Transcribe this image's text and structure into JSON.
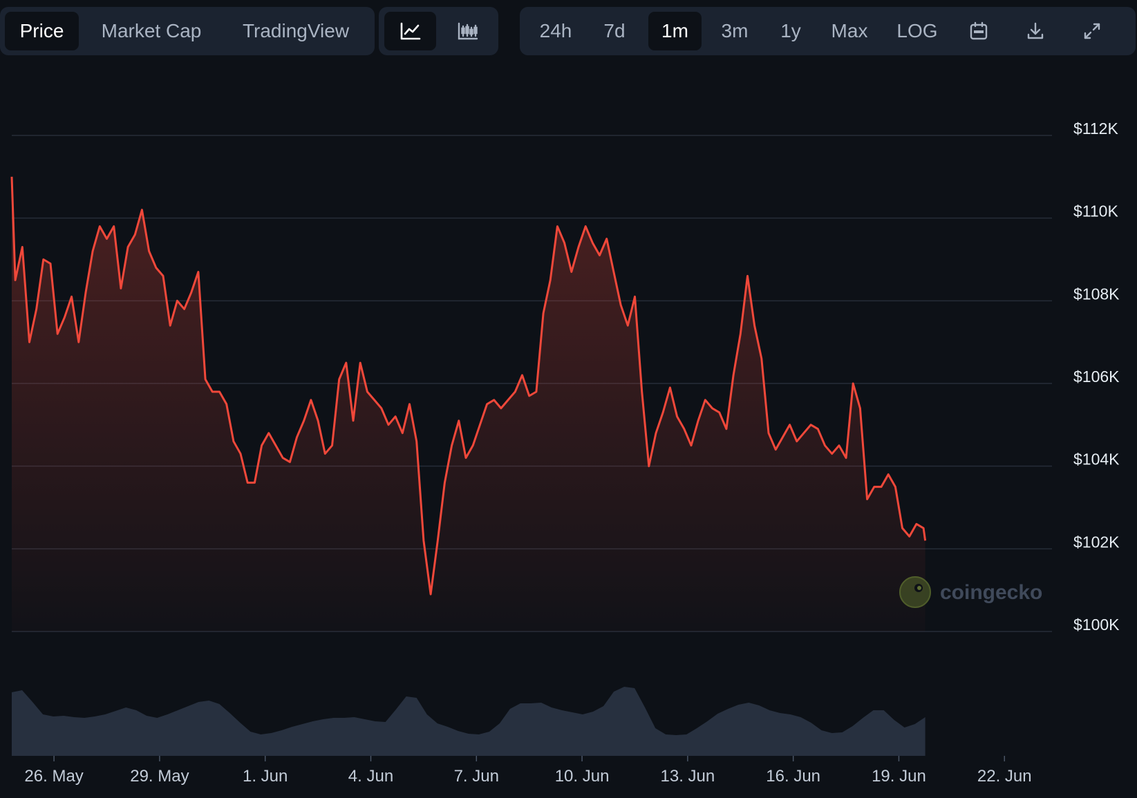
{
  "toolbar": {
    "view_tabs": [
      {
        "label": "Price",
        "active": true
      },
      {
        "label": "Market Cap",
        "active": false
      },
      {
        "label": "TradingView",
        "active": false
      }
    ],
    "chart_style_buttons": [
      {
        "icon": "line-chart-icon",
        "active": true
      },
      {
        "icon": "candlestick-icon",
        "active": false
      }
    ],
    "ranges": [
      {
        "label": "24h",
        "active": false
      },
      {
        "label": "7d",
        "active": false
      },
      {
        "label": "1m",
        "active": true
      },
      {
        "label": "3m",
        "active": false
      },
      {
        "label": "1y",
        "active": false
      },
      {
        "label": "Max",
        "active": false
      },
      {
        "label": "LOG",
        "active": false
      }
    ],
    "action_icons": [
      "calendar-icon",
      "download-icon",
      "fullscreen-icon"
    ]
  },
  "watermark": "coingecko",
  "colors": {
    "background": "#0d1117",
    "line": "#f0483a",
    "volume": "#2a3444",
    "grid": "#262d38",
    "toolbar_bg": "#1b2330"
  },
  "chart_data": {
    "type": "area",
    "title": "",
    "xlabel": "",
    "ylabel": "",
    "ylim": [
      100000,
      112000
    ],
    "y_ticks": [
      100000,
      102000,
      104000,
      106000,
      108000,
      110000,
      112000
    ],
    "y_tick_labels": [
      "$100K",
      "$102K",
      "$104K",
      "$106K",
      "$108K",
      "$110K",
      "$112K"
    ],
    "x_range": [
      -1.2,
      28.35
    ],
    "x_tick_positions": [
      0,
      3,
      6,
      9,
      12,
      15,
      18,
      21,
      24,
      27
    ],
    "x_tick_labels": [
      "26. May",
      "29. May",
      "1. Jun",
      "4. Jun",
      "7. Jun",
      "10. Jun",
      "13. Jun",
      "16. Jun",
      "19. Jun",
      "22. Jun"
    ],
    "x_unit": "days, 0 = 26. May",
    "grid": true,
    "series": [
      {
        "points": [
          [
            -1.2,
            111000
          ],
          [
            -1.1,
            108500
          ],
          [
            -0.9,
            109300
          ],
          [
            -0.7,
            107000
          ],
          [
            -0.5,
            107800
          ],
          [
            -0.3,
            109000
          ],
          [
            -0.1,
            108900
          ],
          [
            0.1,
            107200
          ],
          [
            0.3,
            107600
          ],
          [
            0.5,
            108100
          ],
          [
            0.7,
            107000
          ],
          [
            0.9,
            108200
          ],
          [
            1.1,
            109200
          ],
          [
            1.3,
            109800
          ],
          [
            1.5,
            109500
          ],
          [
            1.7,
            109800
          ],
          [
            1.9,
            108300
          ],
          [
            2.1,
            109300
          ],
          [
            2.3,
            109600
          ],
          [
            2.5,
            110200
          ],
          [
            2.7,
            109200
          ],
          [
            2.9,
            108800
          ],
          [
            3.1,
            108600
          ],
          [
            3.3,
            107400
          ],
          [
            3.5,
            108000
          ],
          [
            3.7,
            107800
          ],
          [
            3.9,
            108200
          ],
          [
            4.1,
            108700
          ],
          [
            4.3,
            106100
          ],
          [
            4.5,
            105800
          ],
          [
            4.7,
            105800
          ],
          [
            4.9,
            105500
          ],
          [
            5.1,
            104600
          ],
          [
            5.3,
            104300
          ],
          [
            5.5,
            103600
          ],
          [
            5.7,
            103600
          ],
          [
            5.9,
            104500
          ],
          [
            6.1,
            104800
          ],
          [
            6.3,
            104500
          ],
          [
            6.5,
            104200
          ],
          [
            6.7,
            104100
          ],
          [
            6.9,
            104700
          ],
          [
            7.1,
            105100
          ],
          [
            7.3,
            105600
          ],
          [
            7.5,
            105100
          ],
          [
            7.7,
            104300
          ],
          [
            7.9,
            104500
          ],
          [
            8.1,
            106100
          ],
          [
            8.3,
            106500
          ],
          [
            8.5,
            105100
          ],
          [
            8.7,
            106500
          ],
          [
            8.9,
            105800
          ],
          [
            9.1,
            105600
          ],
          [
            9.3,
            105400
          ],
          [
            9.5,
            105000
          ],
          [
            9.7,
            105200
          ],
          [
            9.9,
            104800
          ],
          [
            10.1,
            105500
          ],
          [
            10.3,
            104600
          ],
          [
            10.5,
            102200
          ],
          [
            10.7,
            100900
          ],
          [
            10.9,
            102200
          ],
          [
            11.1,
            103600
          ],
          [
            11.3,
            104500
          ],
          [
            11.5,
            105100
          ],
          [
            11.7,
            104200
          ],
          [
            11.9,
            104500
          ],
          [
            12.1,
            105000
          ],
          [
            12.3,
            105500
          ],
          [
            12.5,
            105600
          ],
          [
            12.7,
            105400
          ],
          [
            12.9,
            105600
          ],
          [
            13.1,
            105800
          ],
          [
            13.3,
            106200
          ],
          [
            13.5,
            105700
          ],
          [
            13.7,
            105800
          ],
          [
            13.9,
            107700
          ],
          [
            14.1,
            108500
          ],
          [
            14.3,
            109800
          ],
          [
            14.5,
            109400
          ],
          [
            14.7,
            108700
          ],
          [
            14.9,
            109300
          ],
          [
            15.1,
            109800
          ],
          [
            15.3,
            109400
          ],
          [
            15.5,
            109100
          ],
          [
            15.7,
            109500
          ],
          [
            15.9,
            108700
          ],
          [
            16.1,
            107900
          ],
          [
            16.3,
            107400
          ],
          [
            16.5,
            108100
          ],
          [
            16.7,
            105800
          ],
          [
            16.9,
            104000
          ],
          [
            17.1,
            104800
          ],
          [
            17.3,
            105300
          ],
          [
            17.5,
            105900
          ],
          [
            17.7,
            105200
          ],
          [
            17.9,
            104900
          ],
          [
            18.1,
            104500
          ],
          [
            18.3,
            105100
          ],
          [
            18.5,
            105600
          ],
          [
            18.7,
            105400
          ],
          [
            18.9,
            105300
          ],
          [
            19.1,
            104900
          ],
          [
            19.3,
            106200
          ],
          [
            19.5,
            107200
          ],
          [
            19.7,
            108600
          ],
          [
            19.9,
            107400
          ],
          [
            20.1,
            106600
          ],
          [
            20.3,
            104800
          ],
          [
            20.5,
            104400
          ],
          [
            20.7,
            104700
          ],
          [
            20.9,
            105000
          ],
          [
            21.1,
            104600
          ],
          [
            21.3,
            104800
          ],
          [
            21.5,
            105000
          ],
          [
            21.7,
            104900
          ],
          [
            21.9,
            104500
          ],
          [
            22.1,
            104300
          ],
          [
            22.3,
            104500
          ],
          [
            22.5,
            104200
          ],
          [
            22.7,
            106000
          ],
          [
            22.9,
            105400
          ],
          [
            23.1,
            103200
          ],
          [
            23.3,
            103500
          ],
          [
            23.5,
            103500
          ],
          [
            23.7,
            103800
          ],
          [
            23.9,
            103500
          ],
          [
            24.1,
            102500
          ],
          [
            24.3,
            102300
          ],
          [
            24.5,
            102600
          ],
          [
            24.7,
            102500
          ],
          [
            24.75,
            102200
          ]
        ]
      }
    ],
    "volume_relative": [
      0.92,
      0.95,
      0.78,
      0.6,
      0.57,
      0.58,
      0.56,
      0.55,
      0.57,
      0.6,
      0.65,
      0.7,
      0.66,
      0.58,
      0.55,
      0.6,
      0.66,
      0.72,
      0.78,
      0.8,
      0.75,
      0.62,
      0.48,
      0.35,
      0.31,
      0.33,
      0.37,
      0.42,
      0.46,
      0.5,
      0.53,
      0.55,
      0.55,
      0.56,
      0.53,
      0.5,
      0.49,
      0.67,
      0.86,
      0.84,
      0.6,
      0.47,
      0.42,
      0.36,
      0.32,
      0.31,
      0.35,
      0.47,
      0.68,
      0.76,
      0.76,
      0.77,
      0.7,
      0.66,
      0.63,
      0.6,
      0.64,
      0.72,
      0.93,
      1.0,
      0.98,
      0.7,
      0.4,
      0.31,
      0.3,
      0.31,
      0.4,
      0.5,
      0.61,
      0.68,
      0.74,
      0.77,
      0.73,
      0.66,
      0.62,
      0.6,
      0.56,
      0.48,
      0.37,
      0.33,
      0.34,
      0.43,
      0.55,
      0.66,
      0.66,
      0.52,
      0.41,
      0.46,
      0.56
    ]
  }
}
